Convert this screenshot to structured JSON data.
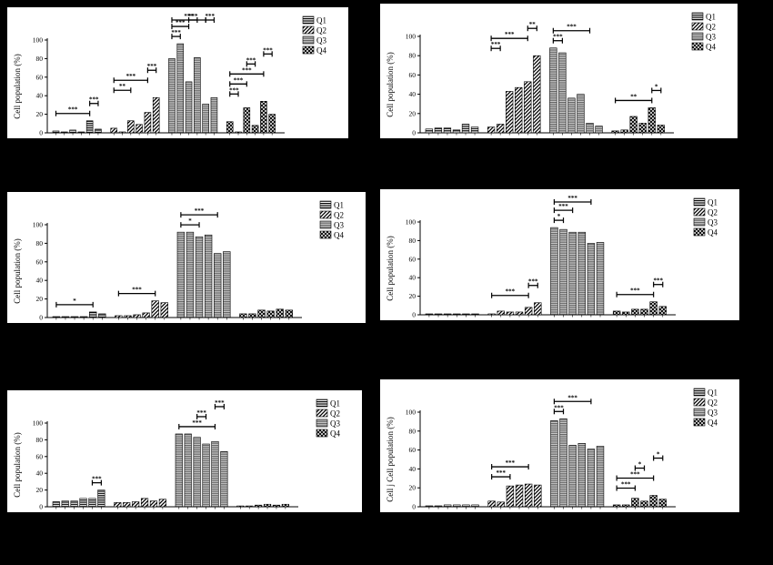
{
  "chart_data": [
    {
      "type": "bar",
      "ylabel": "Cell population (%)",
      "ylim": [
        0,
        100
      ],
      "yticks": [
        0,
        20,
        40,
        60,
        80,
        100
      ],
      "legend_position": "top-right",
      "legend": [
        "Q1",
        "Q2",
        "Q3",
        "Q4"
      ],
      "series": [
        {
          "name": "Q1",
          "values": [
            2,
            1,
            3,
            1,
            13,
            4
          ]
        },
        {
          "name": "Q2",
          "values": [
            5,
            1,
            13,
            9,
            22,
            38
          ]
        },
        {
          "name": "Q3",
          "values": [
            80,
            96,
            55,
            81,
            31,
            38
          ]
        },
        {
          "name": "Q4",
          "values": [
            12,
            1,
            27,
            8,
            34,
            20
          ]
        }
      ],
      "significance": [
        {
          "group": 0,
          "from": 0,
          "to": 4,
          "label": "***"
        },
        {
          "group": 0,
          "from": 4,
          "to": 5,
          "label": "***"
        },
        {
          "group": 1,
          "from": 0,
          "to": 2,
          "label": "**"
        },
        {
          "group": 1,
          "from": 0,
          "to": 4,
          "label": "***"
        },
        {
          "group": 1,
          "from": 4,
          "to": 5,
          "label": "***"
        },
        {
          "group": 2,
          "from": 0,
          "to": 1,
          "label": "***"
        },
        {
          "group": 2,
          "from": 0,
          "to": 2,
          "label": "***"
        },
        {
          "group": 2,
          "from": 0,
          "to": 4,
          "label": "***"
        },
        {
          "group": 2,
          "from": 2,
          "to": 3,
          "label": "***"
        },
        {
          "group": 2,
          "from": 4,
          "to": 5,
          "label": "***"
        },
        {
          "group": 3,
          "from": 0,
          "to": 1,
          "label": "***"
        },
        {
          "group": 3,
          "from": 0,
          "to": 2,
          "label": "***"
        },
        {
          "group": 3,
          "from": 0,
          "to": 4,
          "label": "***"
        },
        {
          "group": 3,
          "from": 2,
          "to": 3,
          "label": "***"
        },
        {
          "group": 3,
          "from": 4,
          "to": 5,
          "label": "***"
        }
      ]
    },
    {
      "type": "bar",
      "ylabel": "Cell population (%)",
      "ylim": [
        0,
        100
      ],
      "yticks": [
        0,
        20,
        40,
        60,
        80,
        100
      ],
      "legend_position": "top-right",
      "legend": [
        "Q1",
        "Q2",
        "Q3",
        "Q4"
      ],
      "series": [
        {
          "name": "Q1",
          "values": [
            4,
            5,
            5,
            3,
            9,
            6
          ]
        },
        {
          "name": "Q2",
          "values": [
            6,
            9,
            43,
            47,
            53,
            80
          ]
        },
        {
          "name": "Q3",
          "values": [
            88,
            83,
            36,
            40,
            10,
            7
          ]
        },
        {
          "name": "Q4",
          "values": [
            2,
            3,
            17,
            10,
            26,
            8
          ]
        }
      ],
      "significance": [
        {
          "group": 1,
          "from": 0,
          "to": 1,
          "label": "***"
        },
        {
          "group": 1,
          "from": 0,
          "to": 4,
          "label": "***"
        },
        {
          "group": 1,
          "from": 4,
          "to": 5,
          "label": "**"
        },
        {
          "group": 2,
          "from": 0,
          "to": 1,
          "label": "***"
        },
        {
          "group": 2,
          "from": 0,
          "to": 4,
          "label": "***"
        },
        {
          "group": 3,
          "from": 0,
          "to": 4,
          "label": "**"
        },
        {
          "group": 3,
          "from": 4,
          "to": 5,
          "label": "*"
        }
      ]
    },
    {
      "type": "bar",
      "ylabel": "Cell population (%)",
      "ylim": [
        0,
        100
      ],
      "yticks": [
        0,
        20,
        40,
        60,
        80,
        100
      ],
      "legend_position": "top-right",
      "legend": [
        "Q1",
        "Q2",
        "Q3",
        "Q4"
      ],
      "series": [
        {
          "name": "Q1",
          "values": [
            1,
            1,
            1,
            1,
            6,
            4
          ]
        },
        {
          "name": "Q2",
          "values": [
            2,
            2,
            3,
            5,
            18,
            16
          ]
        },
        {
          "name": "Q3",
          "values": [
            92,
            92,
            87,
            89,
            69,
            71
          ]
        },
        {
          "name": "Q4",
          "values": [
            4,
            4,
            8,
            7,
            9,
            8
          ]
        }
      ],
      "significance": [
        {
          "group": 0,
          "from": 0,
          "to": 4,
          "label": "*"
        },
        {
          "group": 1,
          "from": 0,
          "to": 4,
          "label": "***"
        },
        {
          "group": 2,
          "from": 0,
          "to": 2,
          "label": "*"
        },
        {
          "group": 2,
          "from": 0,
          "to": 4,
          "label": "***"
        }
      ]
    },
    {
      "type": "bar",
      "ylabel": "Cell population (%)",
      "ylim": [
        0,
        100
      ],
      "yticks": [
        0,
        20,
        40,
        60,
        80,
        100
      ],
      "legend_position": "top-right",
      "legend": [
        "Q1",
        "Q2",
        "Q3",
        "Q4"
      ],
      "series": [
        {
          "name": "Q1",
          "values": [
            1,
            1,
            1,
            1,
            1,
            1
          ]
        },
        {
          "name": "Q2",
          "values": [
            1,
            4,
            3,
            3,
            8,
            13
          ]
        },
        {
          "name": "Q3",
          "values": [
            94,
            92,
            89,
            89,
            77,
            78
          ]
        },
        {
          "name": "Q4",
          "values": [
            4,
            3,
            6,
            6,
            14,
            9
          ]
        }
      ],
      "significance": [
        {
          "group": 1,
          "from": 0,
          "to": 4,
          "label": "***"
        },
        {
          "group": 1,
          "from": 4,
          "to": 5,
          "label": "***"
        },
        {
          "group": 2,
          "from": 0,
          "to": 1,
          "label": "*"
        },
        {
          "group": 2,
          "from": 0,
          "to": 2,
          "label": "***"
        },
        {
          "group": 2,
          "from": 0,
          "to": 4,
          "label": "***"
        },
        {
          "group": 3,
          "from": 0,
          "to": 4,
          "label": "***"
        },
        {
          "group": 3,
          "from": 4,
          "to": 5,
          "label": "***"
        }
      ]
    },
    {
      "type": "bar",
      "ylabel": "Cell population (%)",
      "ylim": [
        0,
        100
      ],
      "yticks": [
        0,
        20,
        40,
        60,
        80,
        100
      ],
      "legend_position": "top-right",
      "legend": [
        "Q1",
        "Q2",
        "Q3",
        "Q4"
      ],
      "series": [
        {
          "name": "Q1",
          "values": [
            6,
            7,
            7,
            10,
            10,
            20
          ]
        },
        {
          "name": "Q2",
          "values": [
            5,
            5,
            6,
            10,
            7,
            9
          ]
        },
        {
          "name": "Q3",
          "values": [
            87,
            87,
            83,
            75,
            78,
            66
          ]
        },
        {
          "name": "Q4",
          "values": [
            1,
            1,
            2,
            3,
            2,
            3
          ]
        }
      ],
      "significance": [
        {
          "group": 0,
          "from": 4,
          "to": 5,
          "label": "***"
        },
        {
          "group": 2,
          "from": 0,
          "to": 4,
          "label": "***"
        },
        {
          "group": 2,
          "from": 2,
          "to": 3,
          "label": "***"
        },
        {
          "group": 2,
          "from": 4,
          "to": 5,
          "label": "***"
        }
      ]
    },
    {
      "type": "bar",
      "ylabel": "Cell j Cell population (%)",
      "ylim": [
        0,
        100
      ],
      "yticks": [
        0,
        20,
        40,
        60,
        80,
        100
      ],
      "legend_position": "top-right",
      "legend": [
        "Q1",
        "Q2",
        "Q3",
        "Q4"
      ],
      "series": [
        {
          "name": "Q1",
          "values": [
            1,
            1,
            2,
            2,
            2,
            2
          ]
        },
        {
          "name": "Q2",
          "values": [
            6,
            5,
            22,
            23,
            24,
            23
          ]
        },
        {
          "name": "Q3",
          "values": [
            91,
            93,
            65,
            67,
            61,
            64
          ]
        },
        {
          "name": "Q4",
          "values": [
            2,
            2,
            9,
            6,
            12,
            8
          ]
        }
      ],
      "significance": [
        {
          "group": 1,
          "from": 0,
          "to": 2,
          "label": "***"
        },
        {
          "group": 1,
          "from": 0,
          "to": 4,
          "label": "***"
        },
        {
          "group": 2,
          "from": 0,
          "to": 1,
          "label": "***"
        },
        {
          "group": 2,
          "from": 0,
          "to": 4,
          "label": "***"
        },
        {
          "group": 3,
          "from": 0,
          "to": 2,
          "label": "***"
        },
        {
          "group": 3,
          "from": 0,
          "to": 4,
          "label": "***"
        },
        {
          "group": 3,
          "from": 2,
          "to": 3,
          "label": "*"
        },
        {
          "group": 3,
          "from": 4,
          "to": 5,
          "label": "*"
        }
      ]
    }
  ]
}
